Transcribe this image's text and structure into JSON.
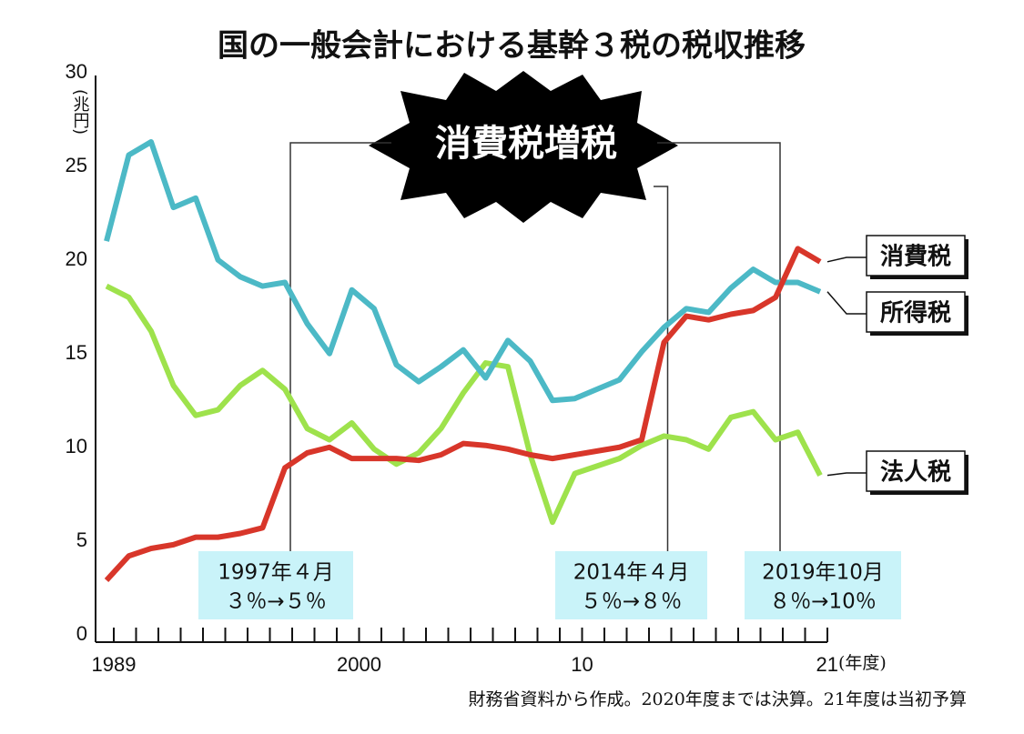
{
  "chart_data": {
    "type": "line",
    "title": "国の一般会計における基幹３税の税収推移",
    "y_unit": "(兆円)",
    "x_unit": "(年度)",
    "categories": [
      "1989",
      null,
      null,
      null,
      null,
      null,
      null,
      null,
      null,
      null,
      null,
      "2000",
      null,
      null,
      null,
      null,
      null,
      null,
      null,
      null,
      null,
      "10",
      null,
      null,
      null,
      null,
      null,
      null,
      null,
      null,
      null,
      null,
      "21"
    ],
    "series": [
      {
        "name": "消費税",
        "color": "#d8362a",
        "values": [
          3.3,
          4.6,
          5.0,
          5.2,
          5.6,
          5.6,
          5.8,
          6.1,
          9.3,
          10.1,
          10.4,
          9.8,
          9.8,
          9.8,
          9.7,
          10.0,
          10.6,
          10.5,
          10.3,
          10.0,
          9.8,
          10.0,
          10.2,
          10.4,
          10.8,
          16.0,
          17.4,
          17.2,
          17.5,
          17.7,
          18.4,
          21.0,
          20.3
        ]
      },
      {
        "name": "所得税",
        "color": "#4cb9c6",
        "values": [
          21.4,
          26.0,
          26.7,
          23.2,
          23.7,
          20.4,
          19.5,
          19.0,
          19.2,
          17.0,
          15.4,
          18.8,
          17.8,
          14.8,
          13.9,
          14.7,
          15.6,
          14.1,
          16.1,
          15.0,
          12.9,
          13.0,
          13.5,
          14.0,
          15.5,
          16.8,
          17.8,
          17.6,
          18.9,
          19.9,
          19.2,
          19.2,
          18.7
        ]
      },
      {
        "name": "法人税",
        "color": "#9ee24c",
        "values": [
          19.0,
          18.4,
          16.6,
          13.7,
          12.1,
          12.4,
          13.7,
          14.5,
          13.5,
          11.4,
          10.8,
          11.7,
          10.3,
          9.5,
          10.1,
          11.4,
          13.3,
          14.9,
          14.7,
          10.0,
          6.4,
          9.0,
          9.4,
          9.8,
          10.5,
          11.0,
          10.8,
          10.3,
          12.0,
          12.3,
          10.8,
          11.2,
          8.9
        ]
      }
    ],
    "ylim": [
      0,
      30
    ],
    "yticks": [
      0,
      5,
      10,
      15,
      20,
      25,
      30
    ],
    "annotation_burst": "消費税増税",
    "annotations": [
      {
        "date": "1997年４月",
        "change": "３％→５％"
      },
      {
        "date": "2014年４月",
        "change": "５％→８％"
      },
      {
        "date": "2019年10月",
        "change": "８％→10％"
      }
    ],
    "source": "財務省資料から作成。2020年度までは決算。21年度は当初予算"
  }
}
